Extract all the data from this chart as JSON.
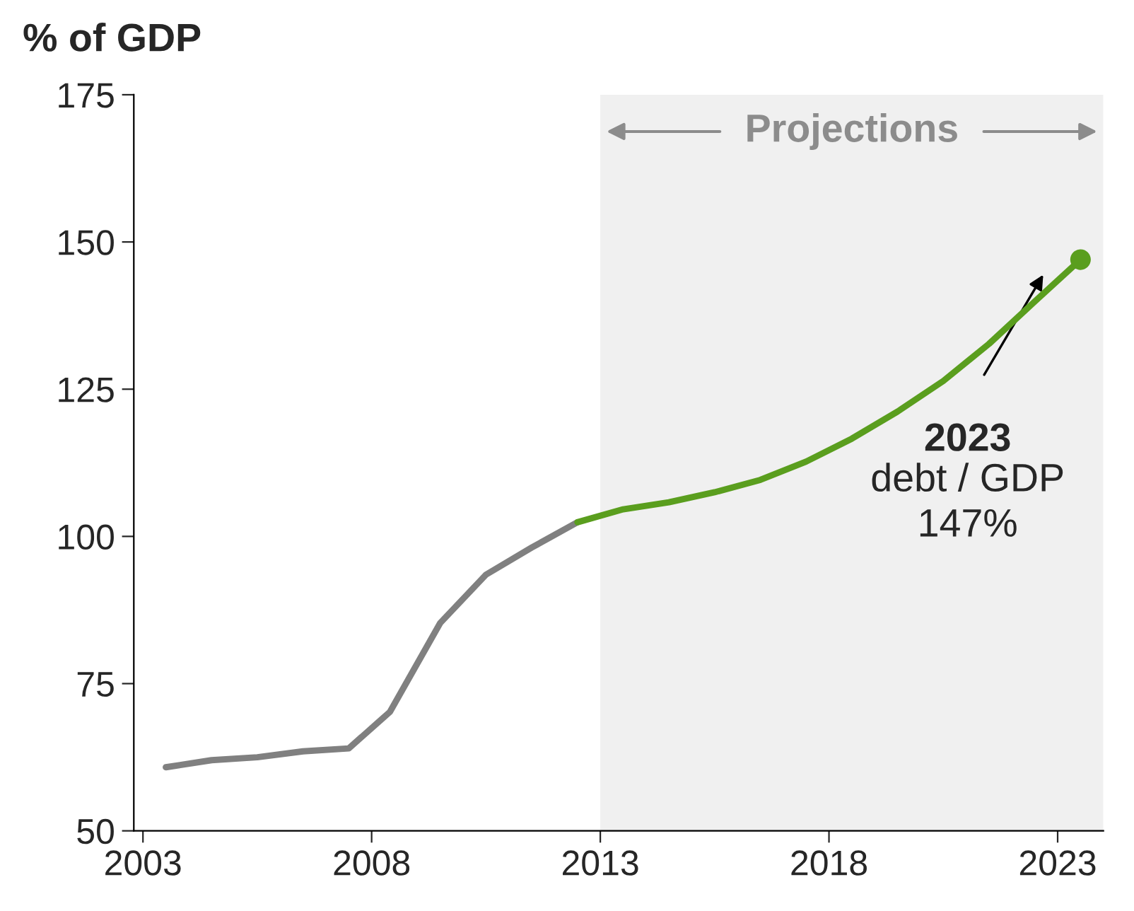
{
  "chart_data": {
    "type": "line",
    "ylabel": "% of GDP",
    "series": [
      {
        "color": "#808080",
        "x": [
          2003.5,
          2004.5,
          2005.5,
          2006.5,
          2007.5,
          2008.4,
          2009.5,
          2010.5,
          2011.5,
          2012.5
        ],
        "values": [
          60.8,
          62.0,
          62.5,
          63.5,
          64.0,
          70.2,
          85.3,
          93.5,
          98.1,
          102.4
        ]
      },
      {
        "color": "#5a9e1e",
        "x": [
          2012.5,
          2013.5,
          2014.5,
          2015.5,
          2016.5,
          2017.5,
          2018.5,
          2019.5,
          2020.5,
          2021.5,
          2022.5,
          2023.5
        ],
        "values": [
          102.4,
          104.6,
          105.8,
          107.5,
          109.6,
          112.7,
          116.6,
          121.2,
          126.4,
          132.7,
          139.9,
          147
        ]
      },
      {
        "type": "scatter",
        "color": "#5a9e1e",
        "x": [
          2023.5
        ],
        "values": [
          147
        ],
        "marker": "circle"
      }
    ],
    "xlim": [
      2002.8,
      2024
    ],
    "xticks": [
      2003,
      2008,
      2013,
      2018,
      2023
    ],
    "ylim": [
      50,
      175
    ],
    "yticks": [
      50,
      75,
      100,
      125,
      150,
      175
    ],
    "bands": [
      {
        "axis": "x",
        "from": 2013,
        "to": 2024,
        "label": "Projections",
        "color": "#f0f0f0"
      }
    ],
    "annotations": [
      "2023\ndebt / GDP\n147%"
    ],
    "grid": false,
    "legend": false,
    "marker": "none",
    "line_style": "solid"
  }
}
